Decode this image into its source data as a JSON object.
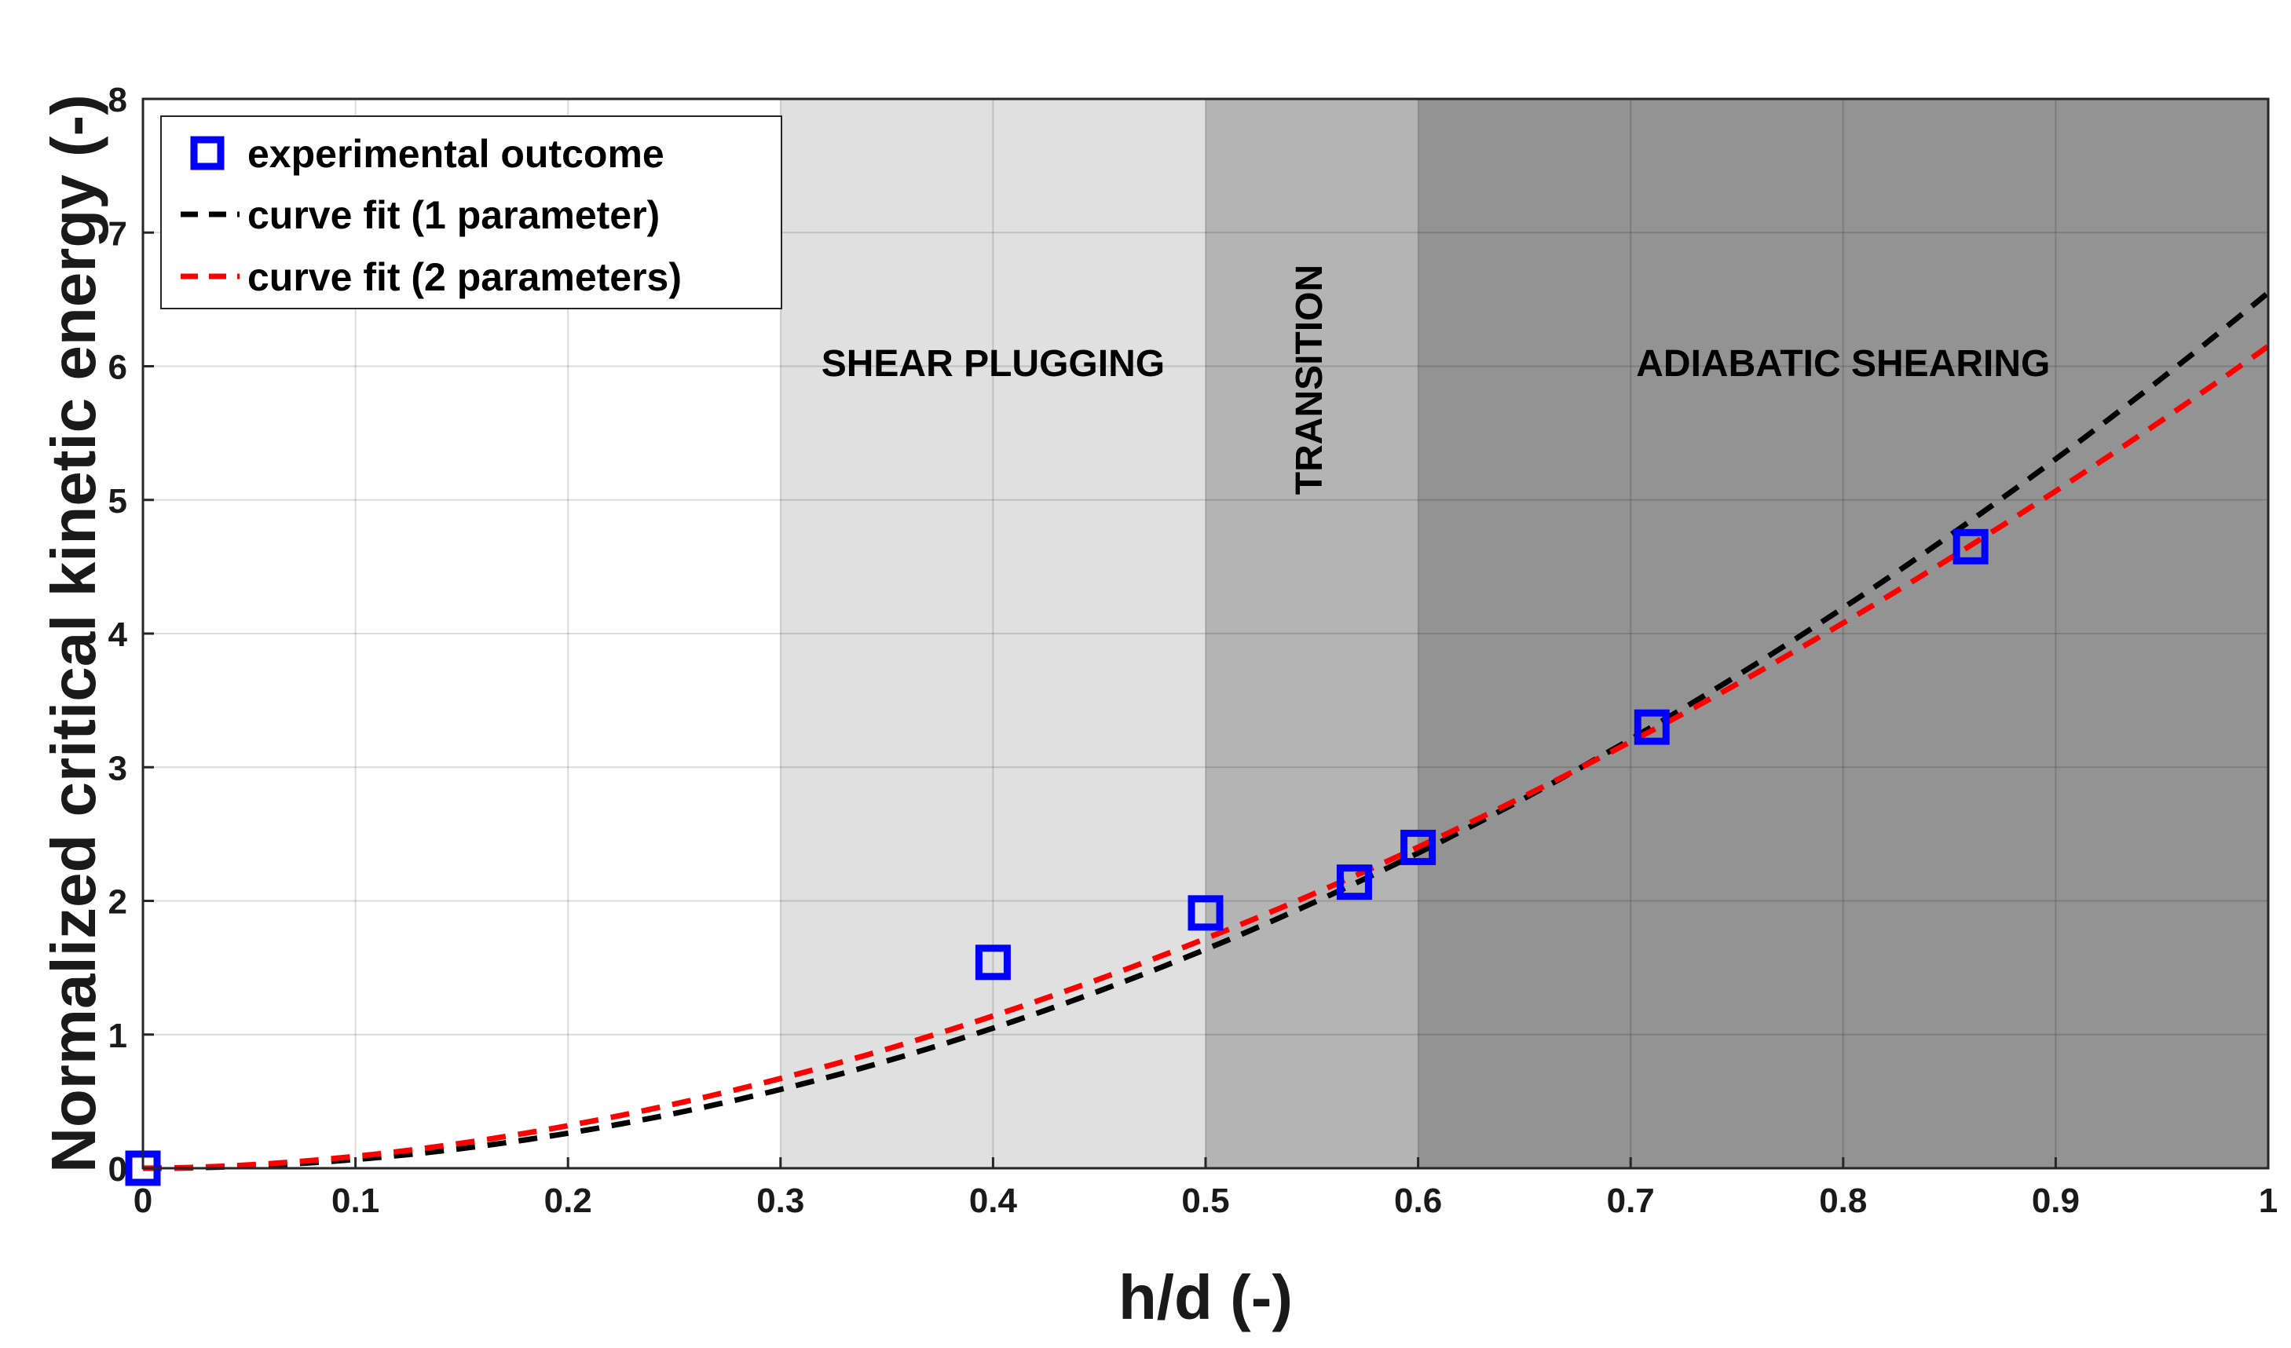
{
  "chart_data": {
    "type": "scatter",
    "xlabel": "h/d (-)",
    "ylabel": "Normalized critical kinetic energy (-)",
    "xlim": [
      0,
      1
    ],
    "ylim": [
      0,
      8
    ],
    "xticks": [
      0,
      0.1,
      0.2,
      0.3,
      0.4,
      0.5,
      0.6,
      0.7,
      0.8,
      0.9,
      1
    ],
    "xtick_labels": [
      "0",
      "0.1",
      "0.2",
      "0.3",
      "0.4",
      "0.5",
      "0.6",
      "0.7",
      "0.8",
      "0.9",
      "1"
    ],
    "yticks": [
      0,
      1,
      2,
      3,
      4,
      5,
      6,
      7,
      8
    ],
    "ytick_labels": [
      "0",
      "1",
      "2",
      "3",
      "4",
      "5",
      "6",
      "7",
      "8"
    ],
    "grid": true,
    "legend_position": "top-left",
    "regions": [
      {
        "label": "SHEAR PLUGGING",
        "x_start": 0.3,
        "x_end": 0.5,
        "color": "#e0e0e0",
        "label_orientation": "horizontal",
        "label_y": 6
      },
      {
        "label": "TRANSITION",
        "x_start": 0.5,
        "x_end": 0.6,
        "color": "#b4b4b4",
        "label_orientation": "vertical",
        "label_y": 5.9
      },
      {
        "label": "ADIABATIC SHEARING",
        "x_start": 0.6,
        "x_end": 1.0,
        "color": "#939393",
        "label_orientation": "horizontal",
        "label_y": 6
      }
    ],
    "series": [
      {
        "name": "experimental outcome",
        "kind": "points",
        "marker": "square",
        "color": "#0000ff",
        "x": [
          0,
          0.4,
          0.5,
          0.57,
          0.6,
          0.71,
          0.86
        ],
        "y": [
          0,
          1.54,
          1.91,
          2.14,
          2.4,
          3.3,
          4.65
        ]
      },
      {
        "name": "curve fit (1 parameter)",
        "kind": "dashed-line",
        "color": "#000000",
        "equation": "y = 6.55 * x^2"
      },
      {
        "name": "curve fit (2 parameters)",
        "kind": "dashed-line",
        "color": "#ff0000",
        "equation": "y = 6.15 * x^1.84"
      }
    ]
  }
}
